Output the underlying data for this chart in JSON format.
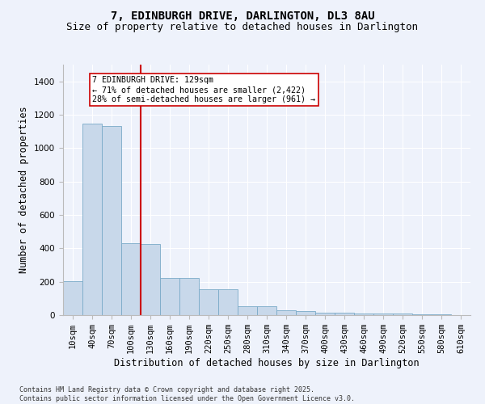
{
  "title": "7, EDINBURGH DRIVE, DARLINGTON, DL3 8AU",
  "subtitle": "Size of property relative to detached houses in Darlington",
  "xlabel": "Distribution of detached houses by size in Darlington",
  "ylabel": "Number of detached properties",
  "bin_labels": [
    "10sqm",
    "40sqm",
    "70sqm",
    "100sqm",
    "130sqm",
    "160sqm",
    "190sqm",
    "220sqm",
    "250sqm",
    "280sqm",
    "310sqm",
    "340sqm",
    "370sqm",
    "400sqm",
    "430sqm",
    "460sqm",
    "490sqm",
    "520sqm",
    "550sqm",
    "580sqm",
    "610sqm"
  ],
  "bar_values": [
    205,
    1145,
    1130,
    430,
    425,
    225,
    225,
    155,
    155,
    55,
    55,
    30,
    25,
    15,
    15,
    10,
    10,
    9,
    5,
    3,
    0
  ],
  "bar_color": "#c8d8ea",
  "bar_edge_color": "#7aaac8",
  "vline_color": "#cc0000",
  "annotation_text": "7 EDINBURGH DRIVE: 129sqm\n← 71% of detached houses are smaller (2,422)\n28% of semi-detached houses are larger (961) →",
  "annotation_box_color": "#ffffff",
  "annotation_box_edge": "#cc0000",
  "ylim": [
    0,
    1500
  ],
  "yticks": [
    0,
    200,
    400,
    600,
    800,
    1000,
    1200,
    1400
  ],
  "footer": "Contains HM Land Registry data © Crown copyright and database right 2025.\nContains public sector information licensed under the Open Government Licence v3.0.",
  "bg_color": "#eef2fb",
  "plot_bg_color": "#eef2fb",
  "grid_color": "#ffffff",
  "title_fontsize": 10,
  "subtitle_fontsize": 9,
  "axis_label_fontsize": 8.5,
  "tick_fontsize": 7.5,
  "footer_fontsize": 6.0
}
